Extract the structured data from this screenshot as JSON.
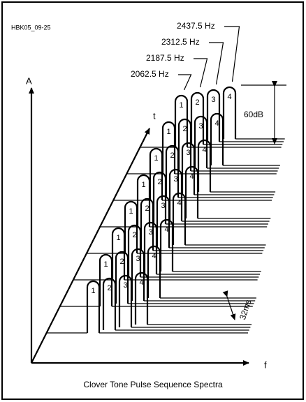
{
  "figure_id": "HBK05_09-25",
  "title": "Clover Tone Pulse Sequence Spectra",
  "axes": {
    "amplitude": "A",
    "time": "t",
    "frequency": "f"
  },
  "tones": [
    "2062.5 Hz",
    "2187.5 Hz",
    "2312.5 Hz",
    "2437.5 Hz"
  ],
  "pulse_labels": [
    "1",
    "2",
    "3",
    "4"
  ],
  "scale": {
    "level": "60dB",
    "interval": "32ms"
  }
}
